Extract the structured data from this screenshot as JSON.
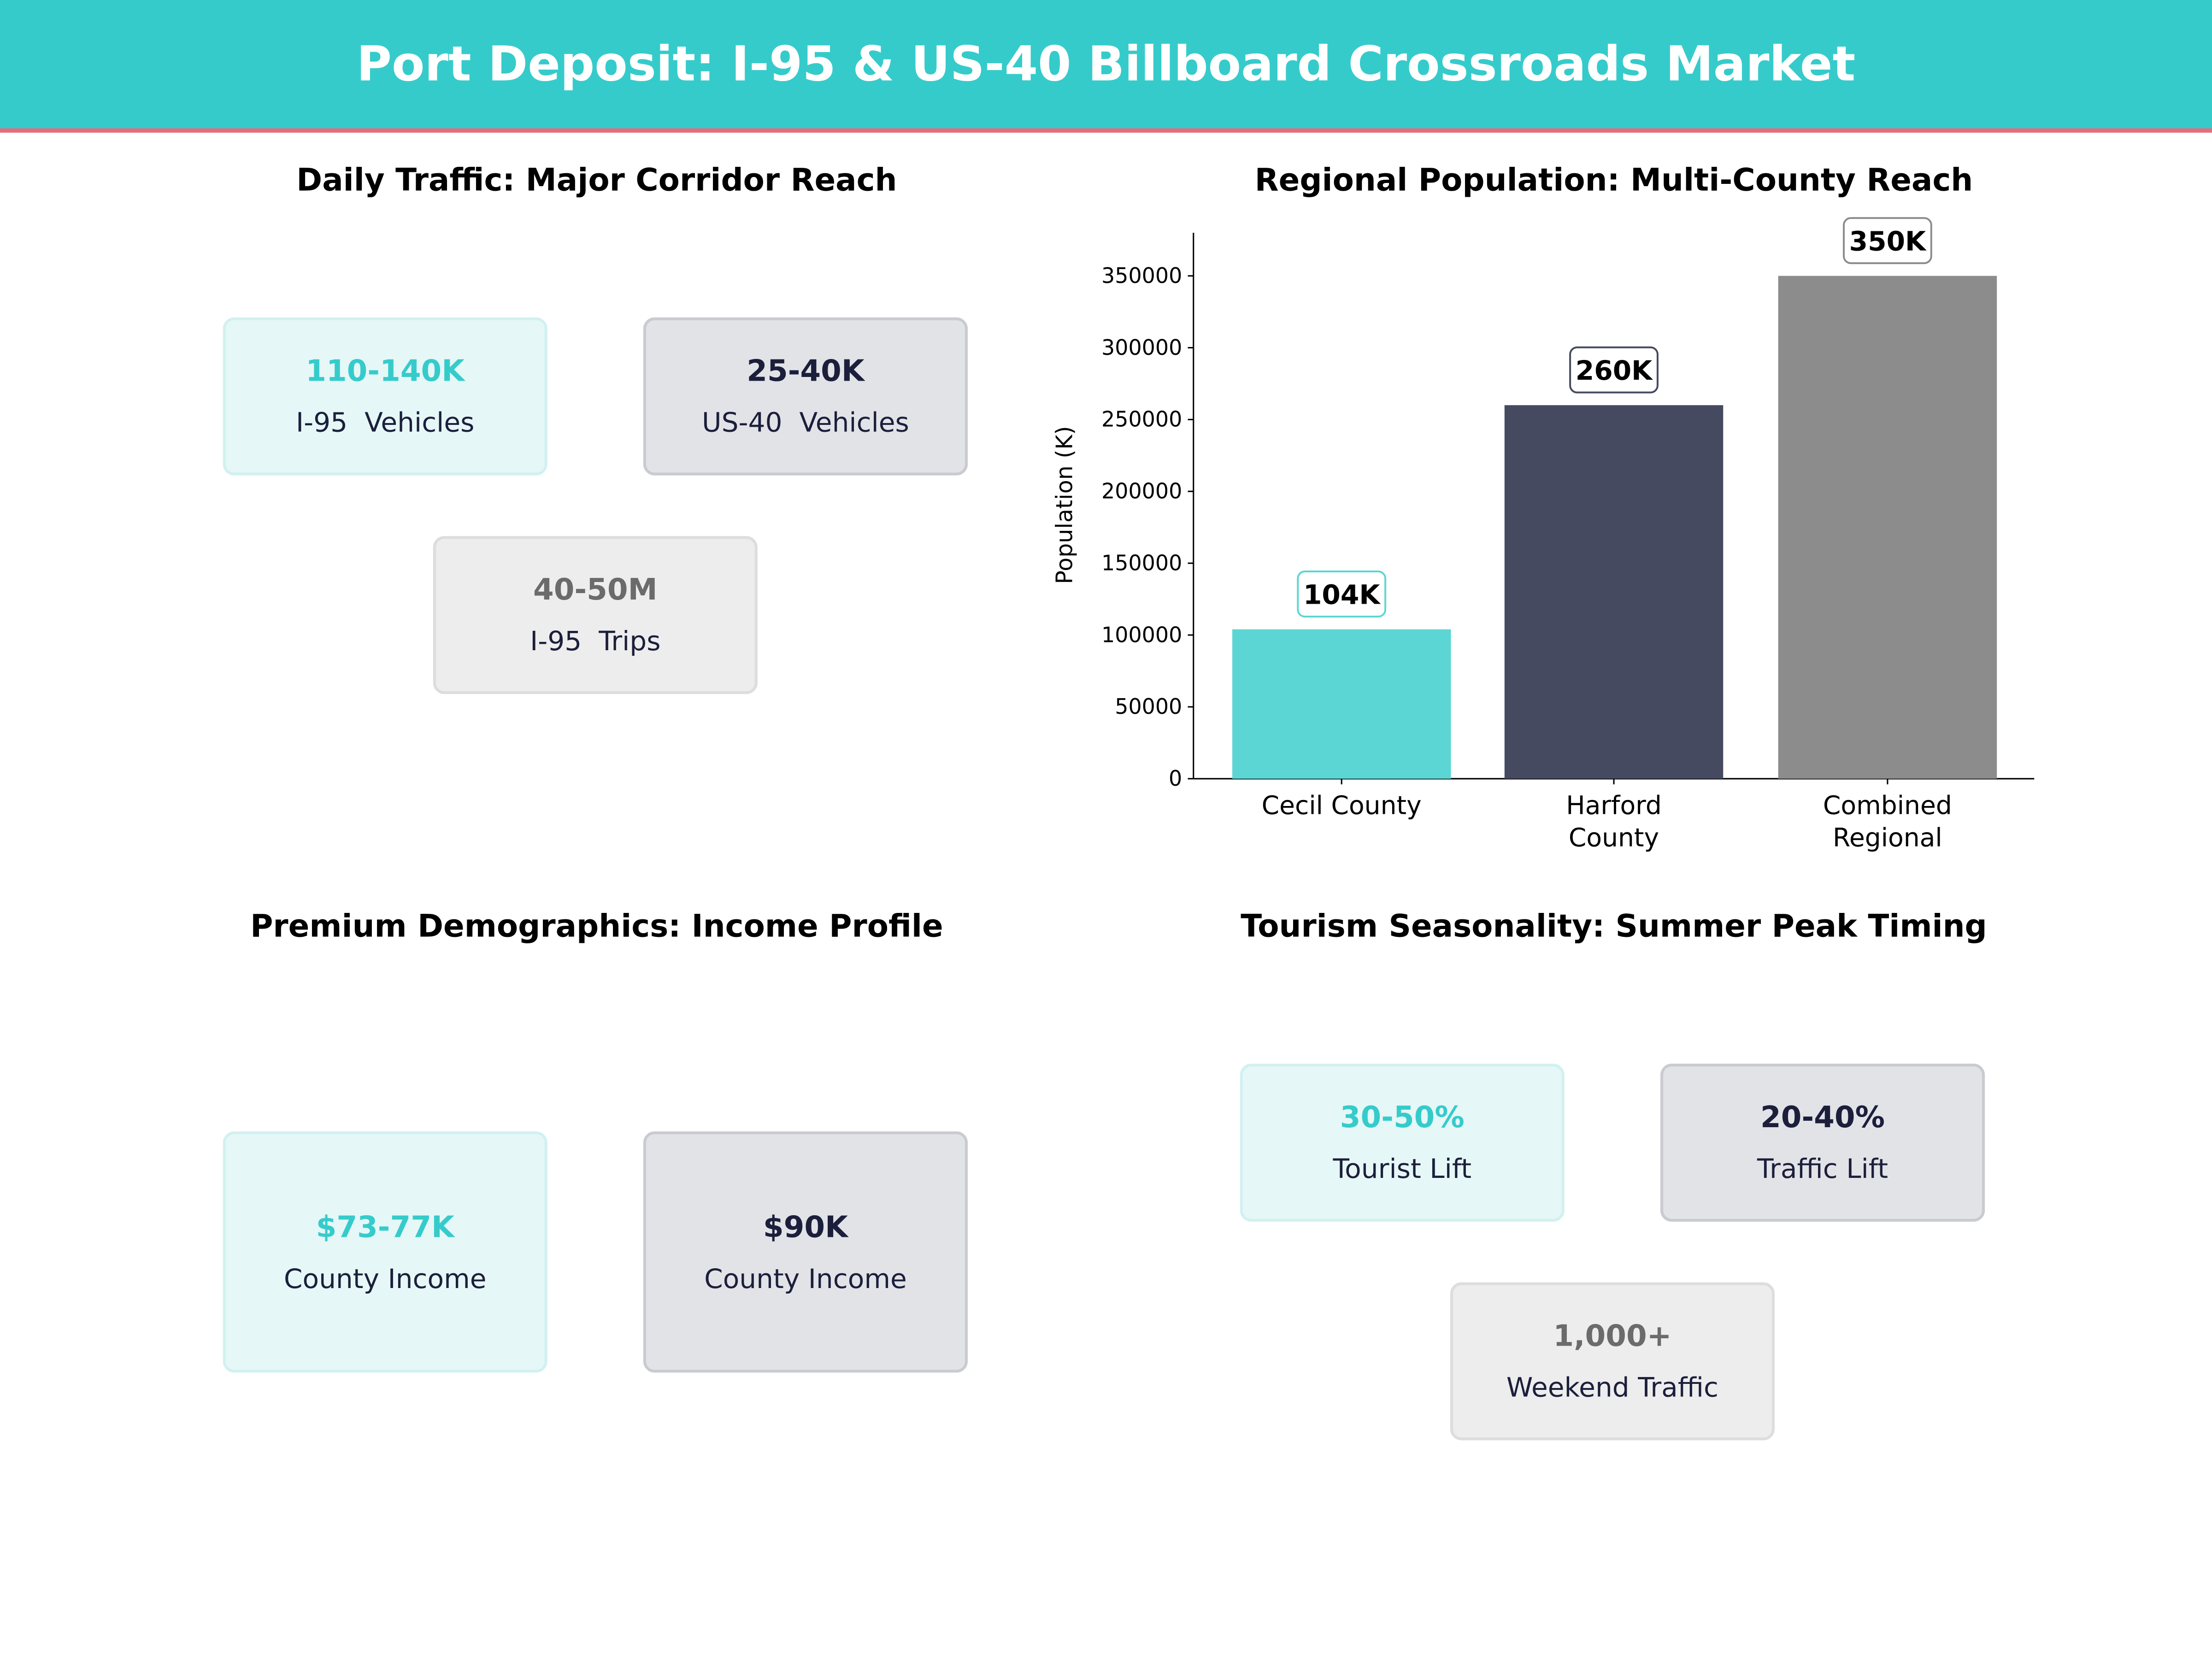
{
  "header": {
    "title": "Port Deposit: I-95 & US-40 Billboard Crossroads Market"
  },
  "traffic": {
    "title": "Daily Traffic: Major Corridor Reach",
    "cards": [
      {
        "value": "110-140K",
        "label": "I-95  Vehicles"
      },
      {
        "value": "25-40K",
        "label": "US-40  Vehicles"
      },
      {
        "value": "40-50M",
        "label": "I-95  Trips"
      }
    ]
  },
  "demographics": {
    "title": "Premium Demographics: Income Profile",
    "cards": [
      {
        "value": "$73-77K",
        "label": "County Income"
      },
      {
        "value": "$90K",
        "label": "County Income"
      }
    ]
  },
  "tourism": {
    "title": "Tourism Seasonality: Summer Peak Timing",
    "cards": [
      {
        "value": "30-50%",
        "label": "Tourist Lift"
      },
      {
        "value": "20-40%",
        "label": "Traffic Lift"
      },
      {
        "value": "1,000+",
        "label": "Weekend Traffic"
      }
    ]
  },
  "chart_data": {
    "type": "bar",
    "title": "Regional Population: Multi-County Reach",
    "xlabel": "",
    "ylabel": "Population (K)",
    "categories": [
      "Cecil County",
      "Harford\nCounty",
      "Combined\nRegional"
    ],
    "values": [
      104000,
      260000,
      350000
    ],
    "data_labels": [
      "104K",
      "260K",
      "350K"
    ],
    "colors": [
      "#5cd6d4",
      "#464a60",
      "#8c8c8c"
    ],
    "label_border_colors": [
      "#5cd6d4",
      "#464a60",
      "#8c8c8c"
    ],
    "ylim": [
      0,
      380000
    ],
    "yticks": [
      0,
      50000,
      100000,
      150000,
      200000,
      250000,
      300000,
      350000
    ],
    "grid": false
  }
}
